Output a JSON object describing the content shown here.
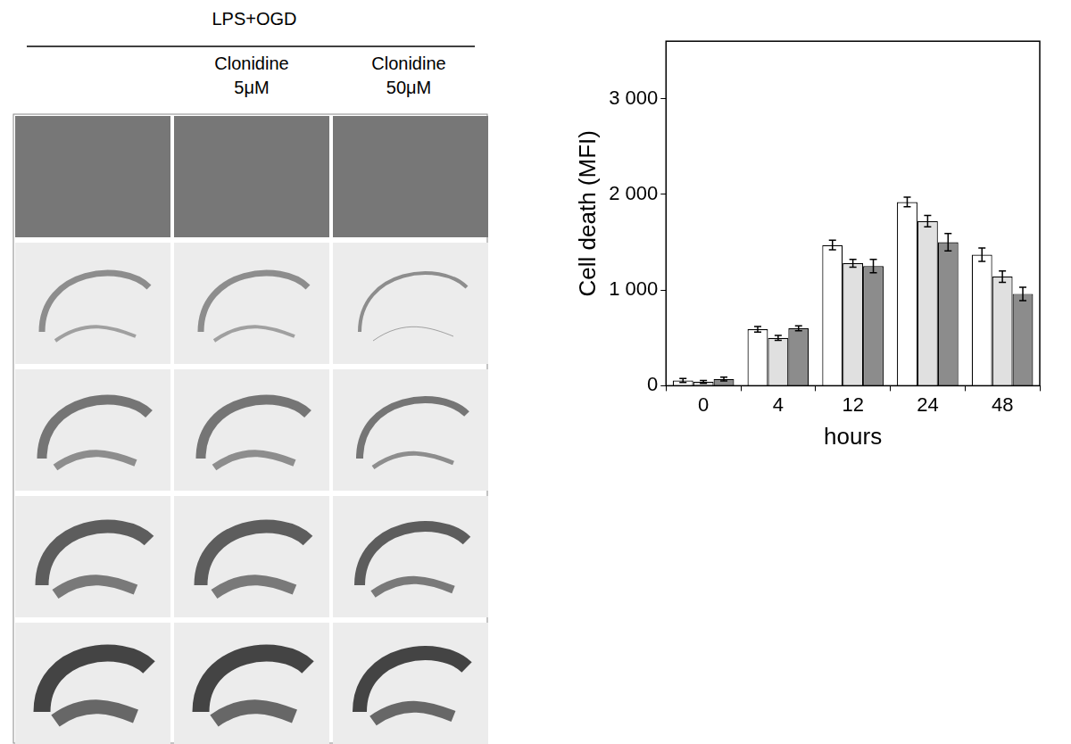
{
  "image_panel": {
    "header": "LPS+OGD",
    "columns": [
      [
        "Clonidine",
        "5μM"
      ],
      [
        "Clonidine",
        "50μM"
      ]
    ]
  },
  "chart_data": {
    "type": "bar",
    "x_label": "hours",
    "y_label": "Cell death (MFI)",
    "categories": [
      "0",
      "4",
      "12",
      "24",
      "48"
    ],
    "series": [
      {
        "color": "#ffffff",
        "values": [
          55,
          590,
          1470,
          1920,
          1370
        ],
        "errors": [
          20,
          30,
          50,
          50,
          70
        ]
      },
      {
        "color": "#e0e0e0",
        "values": [
          40,
          500,
          1280,
          1720,
          1140
        ],
        "errors": [
          15,
          25,
          40,
          60,
          60
        ]
      },
      {
        "color": "#8c8c8c",
        "values": [
          70,
          600,
          1250,
          1500,
          960
        ],
        "errors": [
          20,
          25,
          70,
          90,
          70
        ]
      }
    ],
    "ylim": [
      0,
      3600
    ],
    "yticks": [
      0,
      {
        "value": 1000,
        "label": "1 000"
      },
      {
        "value": 2000,
        "label": "2 000"
      },
      {
        "value": 3000,
        "label": "3 000"
      }
    ],
    "grid": false
  }
}
